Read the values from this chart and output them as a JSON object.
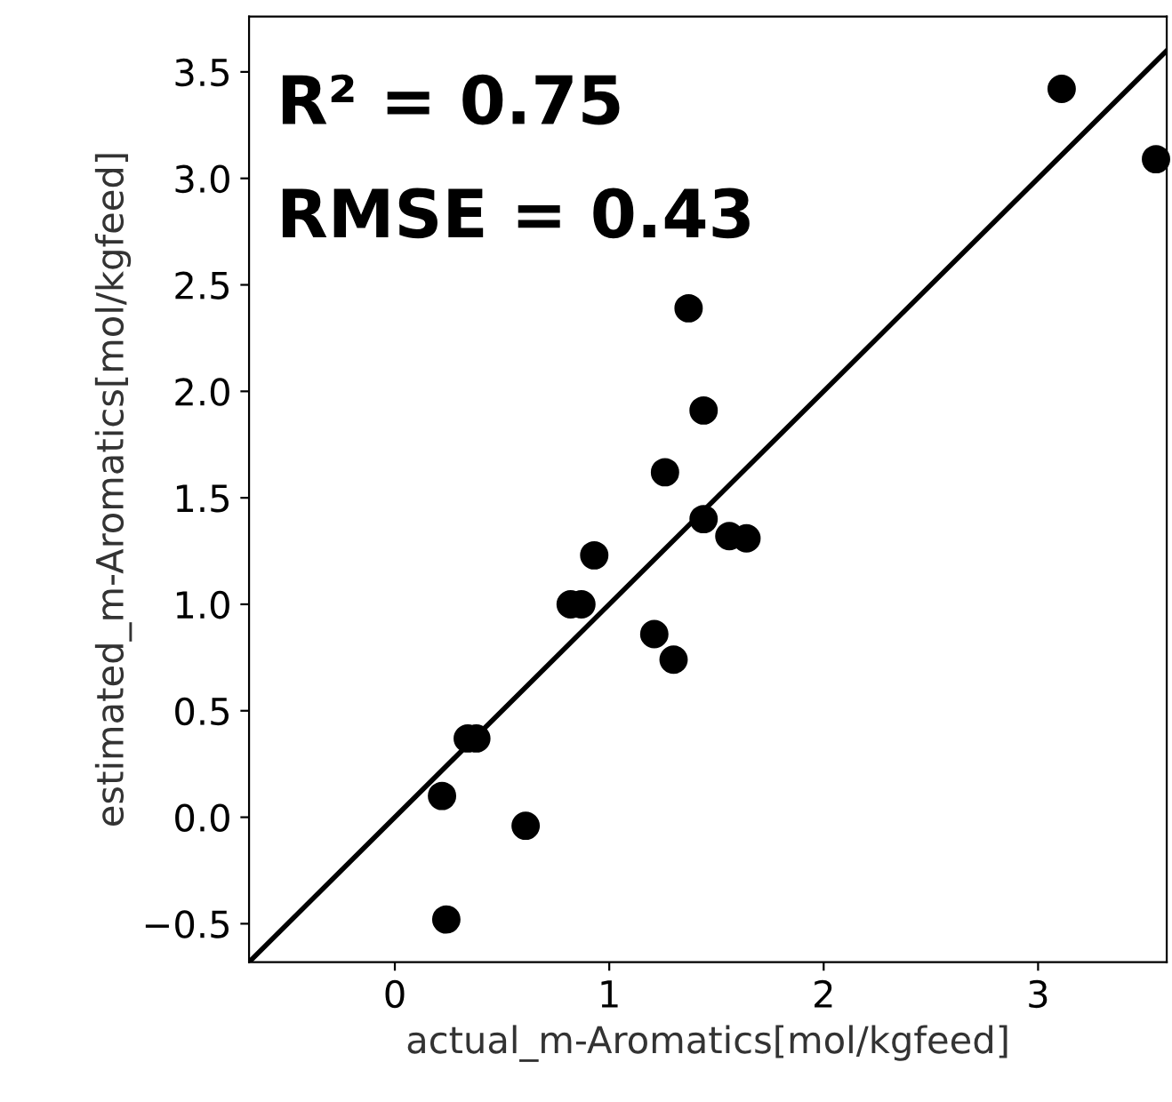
{
  "chart_data": {
    "type": "scatter",
    "xlabel": "actual_m-Aromatics[mol/kgfeed]",
    "ylabel": "estimated_m-Aromatics[mol/kgfeed]",
    "annotations": [
      "R² = 0.75",
      "RMSE = 0.43"
    ],
    "series": [
      {
        "color": "#000000",
        "marker": "circle",
        "x": [
          3.11,
          3.55,
          1.37,
          1.44,
          1.26,
          1.44,
          1.56,
          1.64,
          0.93,
          0.82,
          0.87,
          1.21,
          1.3,
          0.34,
          0.38,
          0.22,
          0.61,
          0.24
        ],
        "values": [
          3.42,
          3.09,
          2.39,
          1.91,
          1.62,
          1.4,
          1.32,
          1.31,
          1.23,
          1.0,
          1.0,
          0.86,
          0.74,
          0.37,
          0.37,
          0.1,
          -0.04,
          -0.48
        ]
      },
      {
        "type": "line",
        "color": "#000000",
        "line_style": "solid",
        "x": [
          -0.68,
          3.6
        ],
        "values": [
          -0.68,
          3.6
        ]
      }
    ],
    "xlim": [
      -0.68,
      3.6
    ],
    "ylim": [
      -0.68,
      3.76
    ],
    "xticks": [
      0,
      1,
      2,
      3
    ],
    "yticks": [
      {
        "value": -0.5,
        "label": "−0.5"
      },
      {
        "value": 0,
        "label": "0.0"
      },
      {
        "value": 0.5,
        "label": "0.5"
      },
      {
        "value": 1,
        "label": "1.0"
      },
      {
        "value": 1.5,
        "label": "1.5"
      },
      {
        "value": 2,
        "label": "2.0"
      },
      {
        "value": 2.5,
        "label": "2.5"
      },
      {
        "value": 3,
        "label": "3.0"
      },
      {
        "value": 3.5,
        "label": "3.5"
      }
    ],
    "grid": false
  }
}
